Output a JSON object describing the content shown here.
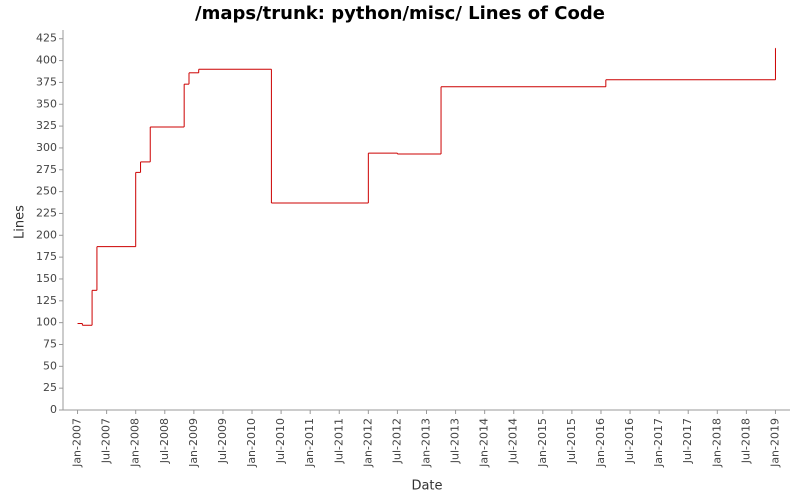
{
  "chart_data": {
    "type": "step-line",
    "title": "/maps/trunk: python/misc/ Lines of Code",
    "x_label": "Date",
    "y_label": "Lines",
    "series": [
      {
        "name": "Lines",
        "color": "#cc0000",
        "x": [
          "2007-01",
          "2007-02",
          "2007-04",
          "2007-05",
          "2008-01",
          "2008-02",
          "2008-04",
          "2008-11",
          "2008-12",
          "2009-02",
          "2010-05",
          "2012-01",
          "2012-07",
          "2013-04",
          "2016-02",
          "2019-01"
        ],
        "values": [
          99,
          97,
          137,
          187,
          272,
          284,
          324,
          373,
          386,
          390,
          237,
          294,
          293,
          370,
          378,
          414
        ]
      }
    ],
    "xlim": [
      "2006-10",
      "2019-04"
    ],
    "xticks": [
      {
        "value": "2007-01",
        "label": "Jan-2007"
      },
      {
        "value": "2007-07",
        "label": "Jul-2007"
      },
      {
        "value": "2008-01",
        "label": "Jan-2008"
      },
      {
        "value": "2008-07",
        "label": "Jul-2008"
      },
      {
        "value": "2009-01",
        "label": "Jan-2009"
      },
      {
        "value": "2009-07",
        "label": "Jul-2009"
      },
      {
        "value": "2010-01",
        "label": "Jan-2010"
      },
      {
        "value": "2010-07",
        "label": "Jul-2010"
      },
      {
        "value": "2011-01",
        "label": "Jan-2011"
      },
      {
        "value": "2011-07",
        "label": "Jul-2011"
      },
      {
        "value": "2012-01",
        "label": "Jan-2012"
      },
      {
        "value": "2012-07",
        "label": "Jul-2012"
      },
      {
        "value": "2013-01",
        "label": "Jan-2013"
      },
      {
        "value": "2013-07",
        "label": "Jul-2013"
      },
      {
        "value": "2014-01",
        "label": "Jan-2014"
      },
      {
        "value": "2014-07",
        "label": "Jul-2014"
      },
      {
        "value": "2015-01",
        "label": "Jan-2015"
      },
      {
        "value": "2015-07",
        "label": "Jul-2015"
      },
      {
        "value": "2016-01",
        "label": "Jan-2016"
      },
      {
        "value": "2016-07",
        "label": "Jul-2016"
      },
      {
        "value": "2017-01",
        "label": "Jan-2017"
      },
      {
        "value": "2017-07",
        "label": "Jul-2017"
      },
      {
        "value": "2018-01",
        "label": "Jan-2018"
      },
      {
        "value": "2018-07",
        "label": "Jul-2018"
      },
      {
        "value": "2019-01",
        "label": "Jan-2019"
      }
    ],
    "ylim": [
      0,
      435
    ],
    "yticks": [
      0,
      25,
      50,
      75,
      100,
      125,
      150,
      175,
      200,
      225,
      250,
      275,
      300,
      325,
      350,
      375,
      400,
      425
    ],
    "grid": false
  }
}
